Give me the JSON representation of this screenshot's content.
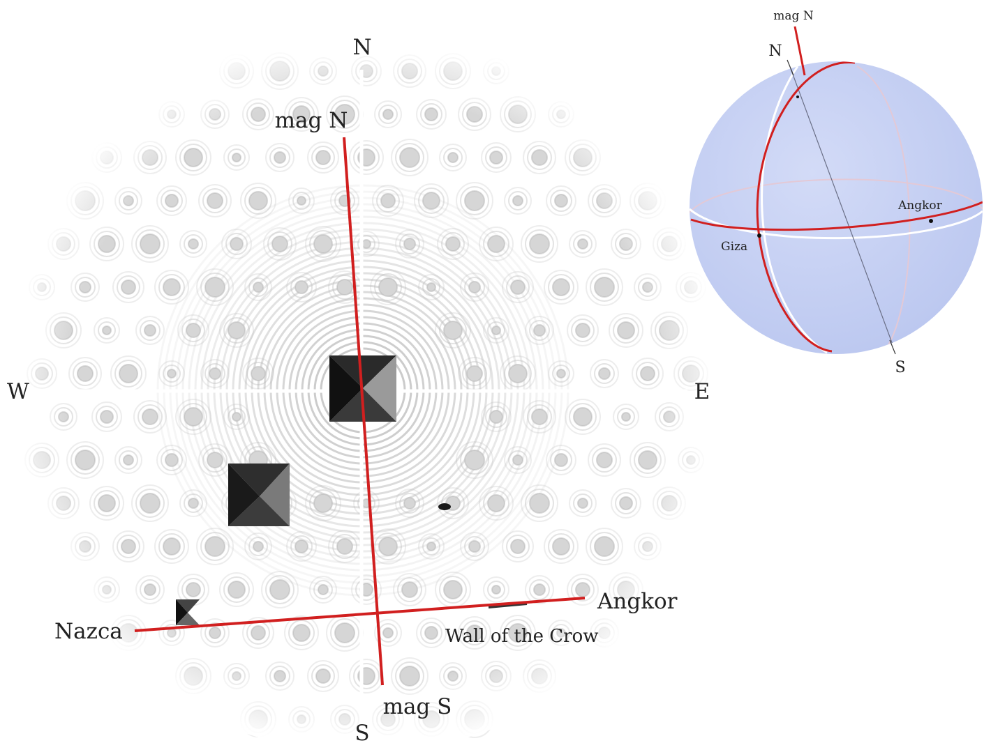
{
  "plan_view": {
    "labels": {
      "north": "N",
      "south": "S",
      "west": "W",
      "east": "E",
      "mag_north": "mag N",
      "mag_south": "mag S",
      "nazca": "Nazca",
      "angkor": "Angkor",
      "wall": "Wall of the Crow"
    }
  },
  "globe_view": {
    "labels": {
      "mag_north": "mag N",
      "north": "N",
      "south": "S",
      "angkor": "Angkor",
      "giza": "Giza"
    }
  },
  "colors": {
    "alignment_line": "#d11f1f",
    "globe_fill": "#c8d2f4",
    "ripple": "#b9b9b9",
    "pyramid_dark": "#1c1c1c",
    "label": "#222222"
  }
}
